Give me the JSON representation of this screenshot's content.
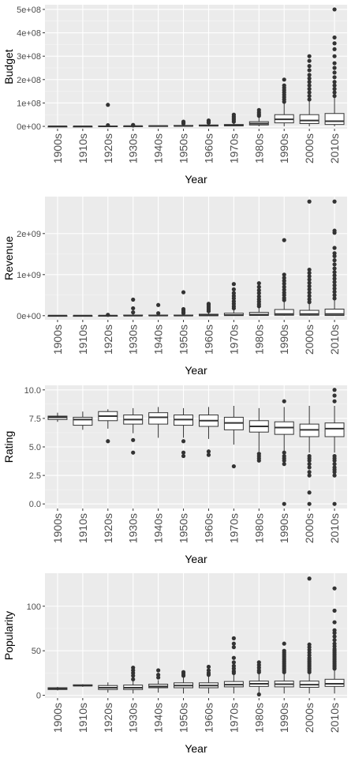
{
  "chart_data": [
    {
      "type": "boxplot",
      "xlabel": "Year",
      "ylabel": "Budget",
      "categories": [
        "1900s",
        "1910s",
        "1920s",
        "1930s",
        "1940s",
        "1950s",
        "1960s",
        "1970s",
        "1980s",
        "1990s",
        "2000s",
        "2010s"
      ],
      "ylim": [
        -10000000,
        520000000
      ],
      "yticks": [
        0,
        100000000,
        200000000,
        300000000,
        400000000,
        500000000
      ],
      "ytick_labels": [
        "0e+00",
        "1e+08",
        "2e+08",
        "3e+08",
        "4e+08",
        "5e+08"
      ],
      "boxes": [
        {
          "category": "1900s",
          "min": 0,
          "q1": 0,
          "median": 0,
          "q3": 0,
          "max": 0,
          "outliers": []
        },
        {
          "category": "1910s",
          "min": 0,
          "q1": 0,
          "median": 0,
          "q3": 0,
          "max": 300000,
          "outliers": []
        },
        {
          "category": "1920s",
          "min": 0,
          "q1": 0,
          "median": 300000,
          "q3": 1500000,
          "max": 3000000,
          "outliers": [
            5000000,
            92000000
          ]
        },
        {
          "category": "1930s",
          "min": 0,
          "q1": 300000,
          "median": 800000,
          "q3": 1500000,
          "max": 3000000,
          "outliers": [
            4000000,
            6000000
          ]
        },
        {
          "category": "1940s",
          "min": 0,
          "q1": 500000,
          "median": 1200000,
          "q3": 2500000,
          "max": 4000000,
          "outliers": []
        },
        {
          "category": "1950s",
          "min": 0,
          "q1": 1000000,
          "median": 2000000,
          "q3": 4000000,
          "max": 8000000,
          "outliers": [
            12000000,
            15000000,
            20000000
          ]
        },
        {
          "category": "1960s",
          "min": 0,
          "q1": 1500000,
          "median": 3000000,
          "q3": 6000000,
          "max": 12000000,
          "outliers": [
            15000000,
            20000000,
            25000000
          ]
        },
        {
          "category": "1970s",
          "min": 0,
          "q1": 2000000,
          "median": 4000000,
          "q3": 8000000,
          "max": 15000000,
          "outliers": [
            20000000,
            28000000,
            35000000,
            42000000,
            50000000
          ]
        },
        {
          "category": "1980s",
          "min": 0,
          "q1": 6000000,
          "median": 12000000,
          "q3": 20000000,
          "max": 40000000,
          "outliers": [
            45000000,
            52000000,
            60000000,
            70000000
          ]
        },
        {
          "category": "1990s",
          "min": 0,
          "q1": 15000000,
          "median": 30000000,
          "q3": 50000000,
          "max": 100000000,
          "outliers": [
            105000000,
            115000000,
            125000000,
            135000000,
            145000000,
            155000000,
            165000000,
            175000000,
            200000000
          ]
        },
        {
          "category": "2000s",
          "min": 0,
          "q1": 12000000,
          "median": 25000000,
          "q3": 50000000,
          "max": 110000000,
          "outliers": [
            115000000,
            130000000,
            145000000,
            160000000,
            175000000,
            190000000,
            205000000,
            220000000,
            240000000,
            258000000,
            280000000,
            300000000
          ]
        },
        {
          "category": "2010s",
          "min": 0,
          "q1": 8000000,
          "median": 22000000,
          "q3": 55000000,
          "max": 125000000,
          "outliers": [
            130000000,
            145000000,
            160000000,
            175000000,
            190000000,
            210000000,
            230000000,
            250000000,
            270000000,
            300000000,
            330000000,
            355000000,
            380000000,
            500000000
          ]
        }
      ]
    },
    {
      "type": "boxplot",
      "xlabel": "Year",
      "ylabel": "Revenue",
      "categories": [
        "1900s",
        "1910s",
        "1920s",
        "1930s",
        "1940s",
        "1950s",
        "1960s",
        "1970s",
        "1980s",
        "1990s",
        "2000s",
        "2010s"
      ],
      "ylim": [
        -100000000,
        2900000000
      ],
      "yticks": [
        0,
        1000000000,
        2000000000
      ],
      "ytick_labels": [
        "0e+00",
        "1e+09",
        "2e+09"
      ],
      "boxes": [
        {
          "category": "1900s",
          "min": 0,
          "q1": 0,
          "median": 0,
          "q3": 0,
          "max": 0,
          "outliers": []
        },
        {
          "category": "1910s",
          "min": 0,
          "q1": 0,
          "median": 0,
          "q3": 0,
          "max": 2000000,
          "outliers": []
        },
        {
          "category": "1920s",
          "min": 0,
          "q1": 0,
          "median": 0,
          "q3": 3000000,
          "max": 8000000,
          "outliers": [
            20000000
          ]
        },
        {
          "category": "1930s",
          "min": 0,
          "q1": 0,
          "median": 2000000,
          "q3": 15000000,
          "max": 40000000,
          "outliers": [
            80000000,
            180000000,
            390000000
          ]
        },
        {
          "category": "1940s",
          "min": 0,
          "q1": 0,
          "median": 3000000,
          "q3": 15000000,
          "max": 40000000,
          "outliers": [
            60000000,
            260000000
          ]
        },
        {
          "category": "1950s",
          "min": 0,
          "q1": 0,
          "median": 3000000,
          "q3": 15000000,
          "max": 35000000,
          "outliers": [
            60000000,
            90000000,
            130000000,
            160000000,
            570000000
          ]
        },
        {
          "category": "1960s",
          "min": 0,
          "q1": 0,
          "median": 8000000,
          "q3": 35000000,
          "max": 80000000,
          "outliers": [
            110000000,
            150000000,
            190000000,
            230000000,
            270000000,
            290000000
          ]
        },
        {
          "category": "1970s",
          "min": 0,
          "q1": 2000000,
          "median": 15000000,
          "q3": 60000000,
          "max": 140000000,
          "outliers": [
            180000000,
            230000000,
            290000000,
            350000000,
            420000000,
            480000000,
            550000000,
            640000000,
            770000000
          ]
        },
        {
          "category": "1980s",
          "min": 0,
          "q1": 5000000,
          "median": 25000000,
          "q3": 80000000,
          "max": 190000000,
          "outliers": [
            230000000,
            280000000,
            340000000,
            400000000,
            470000000,
            550000000,
            620000000,
            700000000,
            790000000
          ]
        },
        {
          "category": "1990s",
          "min": 0,
          "q1": 10000000,
          "median": 40000000,
          "q3": 150000000,
          "max": 350000000,
          "outliers": [
            380000000,
            430000000,
            500000000,
            560000000,
            630000000,
            700000000,
            780000000,
            850000000,
            920000000,
            1000000000,
            1840000000
          ]
        },
        {
          "category": "2000s",
          "min": 0,
          "q1": 10000000,
          "median": 40000000,
          "q3": 130000000,
          "max": 300000000,
          "outliers": [
            330000000,
            400000000,
            480000000,
            560000000,
            640000000,
            720000000,
            800000000,
            880000000,
            960000000,
            1040000000,
            1120000000,
            2780000000
          ]
        },
        {
          "category": "2010s",
          "min": 0,
          "q1": 5000000,
          "median": 40000000,
          "q3": 160000000,
          "max": 380000000,
          "outliers": [
            420000000,
            500000000,
            580000000,
            660000000,
            740000000,
            820000000,
            900000000,
            980000000,
            1060000000,
            1150000000,
            1250000000,
            1350000000,
            1450000000,
            1520000000,
            1650000000,
            2020000000,
            2070000000,
            2780000000
          ]
        }
      ]
    },
    {
      "type": "boxplot",
      "xlabel": "Year",
      "ylabel": "Rating",
      "categories": [
        "1900s",
        "1910s",
        "1920s",
        "1930s",
        "1940s",
        "1950s",
        "1960s",
        "1970s",
        "1980s",
        "1990s",
        "2000s",
        "2010s"
      ],
      "ylim": [
        -0.4,
        10.4
      ],
      "yticks": [
        0,
        2.5,
        5,
        7.5,
        10
      ],
      "ytick_labels": [
        "0.0",
        "2.5",
        "5.0",
        "7.5",
        "10.0"
      ],
      "boxes": [
        {
          "category": "1900s",
          "min": 7.2,
          "q1": 7.4,
          "median": 7.6,
          "q3": 7.7,
          "max": 8.0,
          "outliers": []
        },
        {
          "category": "1910s",
          "min": 6.5,
          "q1": 6.9,
          "median": 7.4,
          "q3": 7.6,
          "max": 8.1,
          "outliers": []
        },
        {
          "category": "1920s",
          "min": 6.6,
          "q1": 7.3,
          "median": 7.7,
          "q3": 8.1,
          "max": 8.3,
          "outliers": [
            5.5
          ]
        },
        {
          "category": "1930s",
          "min": 6.2,
          "q1": 7.0,
          "median": 7.4,
          "q3": 7.8,
          "max": 8.4,
          "outliers": [
            5.6,
            4.5
          ]
        },
        {
          "category": "1940s",
          "min": 5.8,
          "q1": 7.0,
          "median": 7.6,
          "q3": 8.0,
          "max": 8.5,
          "outliers": []
        },
        {
          "category": "1950s",
          "min": 5.8,
          "q1": 6.9,
          "median": 7.4,
          "q3": 7.8,
          "max": 8.4,
          "outliers": [
            5.5,
            4.5,
            4.2
          ]
        },
        {
          "category": "1960s",
          "min": 5.7,
          "q1": 6.8,
          "median": 7.3,
          "q3": 7.8,
          "max": 8.5,
          "outliers": [
            4.6,
            4.3
          ]
        },
        {
          "category": "1970s",
          "min": 5.2,
          "q1": 6.5,
          "median": 7.1,
          "q3": 7.6,
          "max": 8.6,
          "outliers": [
            3.3
          ]
        },
        {
          "category": "1980s",
          "min": 4.6,
          "q1": 6.3,
          "median": 6.8,
          "q3": 7.3,
          "max": 8.4,
          "outliers": [
            4.4,
            4.2,
            4.0,
            3.8
          ]
        },
        {
          "category": "1990s",
          "min": 4.6,
          "q1": 6.1,
          "median": 6.7,
          "q3": 7.2,
          "max": 8.5,
          "outliers": [
            4.5,
            4.2,
            4.0,
            3.8,
            3.5,
            0.0,
            9.0
          ]
        },
        {
          "category": "2000s",
          "min": 4.5,
          "q1": 5.9,
          "median": 6.5,
          "q3": 7.0,
          "max": 8.6,
          "outliers": [
            4.2,
            4.0,
            3.8,
            3.5,
            3.2,
            2.8,
            2.5,
            1.0,
            0.0
          ]
        },
        {
          "category": "2010s",
          "min": 4.5,
          "q1": 5.9,
          "median": 6.6,
          "q3": 7.1,
          "max": 8.6,
          "outliers": [
            4.2,
            4.0,
            3.8,
            3.5,
            3.2,
            3.0,
            2.8,
            2.5,
            0.0,
            9.0,
            9.5,
            10.0
          ]
        }
      ]
    },
    {
      "type": "boxplot",
      "xlabel": "Year",
      "ylabel": "Popularity",
      "categories": [
        "1900s",
        "1910s",
        "1920s",
        "1930s",
        "1940s",
        "1950s",
        "1960s",
        "1970s",
        "1980s",
        "1990s",
        "2000s",
        "2010s"
      ],
      "ylim": [
        -3,
        137
      ],
      "yticks": [
        0,
        50,
        100
      ],
      "ytick_labels": [
        "0",
        "50",
        "100"
      ],
      "boxes": [
        {
          "category": "1900s",
          "min": 5.5,
          "q1": 6.5,
          "median": 7.5,
          "q3": 8.5,
          "max": 9.5,
          "outliers": []
        },
        {
          "category": "1910s",
          "min": 9.5,
          "q1": 10.5,
          "median": 11,
          "q3": 11.8,
          "max": 12.5,
          "outliers": []
        },
        {
          "category": "1920s",
          "min": 3,
          "q1": 6.5,
          "median": 8.5,
          "q3": 11,
          "max": 14.5,
          "outliers": []
        },
        {
          "category": "1930s",
          "min": 2,
          "q1": 6.5,
          "median": 8.5,
          "q3": 11.5,
          "max": 16,
          "outliers": [
            18,
            22,
            25,
            28,
            31
          ]
        },
        {
          "category": "1940s",
          "min": 3,
          "q1": 8.5,
          "median": 10,
          "q3": 12.5,
          "max": 17,
          "outliers": [
            20,
            23,
            28
          ]
        },
        {
          "category": "1950s",
          "min": 2,
          "q1": 8.5,
          "median": 11,
          "q3": 14,
          "max": 20,
          "outliers": [
            22,
            24,
            26
          ]
        },
        {
          "category": "1960s",
          "min": 2,
          "q1": 8.5,
          "median": 11,
          "q3": 14,
          "max": 21,
          "outliers": [
            23,
            25,
            28,
            32
          ]
        },
        {
          "category": "1970s",
          "min": 2,
          "q1": 9.5,
          "median": 12,
          "q3": 15.5,
          "max": 23,
          "outliers": [
            25,
            27,
            30,
            33,
            37,
            42,
            54,
            58,
            64
          ]
        },
        {
          "category": "1980s",
          "min": 2,
          "q1": 10,
          "median": 13,
          "q3": 16,
          "max": 24,
          "outliers": [
            26,
            28,
            31,
            34,
            37,
            1
          ]
        },
        {
          "category": "1990s",
          "min": 2,
          "q1": 9.5,
          "median": 12.5,
          "q3": 16,
          "max": 24,
          "outliers": [
            26,
            28,
            30,
            32,
            34,
            36,
            38,
            40,
            42,
            44,
            46,
            48,
            50,
            58
          ]
        },
        {
          "category": "2000s",
          "min": 2,
          "q1": 9,
          "median": 12,
          "q3": 16,
          "max": 24,
          "outliers": [
            26,
            28,
            30,
            32,
            34,
            36,
            38,
            40,
            42,
            45,
            48,
            51,
            54,
            57,
            131
          ]
        },
        {
          "category": "2010s",
          "min": 2,
          "q1": 10,
          "median": 13,
          "q3": 18,
          "max": 28,
          "outliers": [
            30,
            32,
            34,
            36,
            38,
            40,
            42,
            44,
            46,
            48,
            50,
            52,
            55,
            58,
            62,
            66,
            70,
            73,
            82,
            95,
            120
          ]
        }
      ]
    }
  ]
}
